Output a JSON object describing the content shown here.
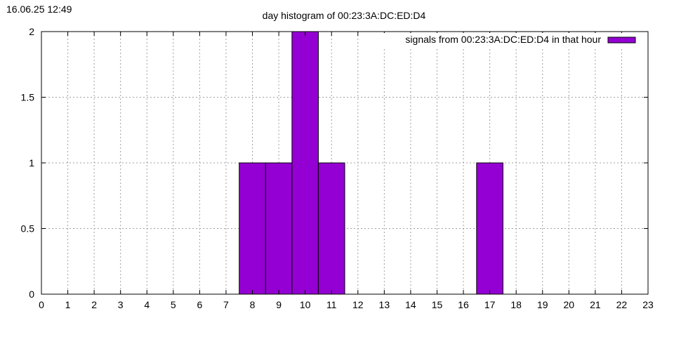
{
  "timestamp": "16.06.25 12:49",
  "chart_data": {
    "type": "bar",
    "title": "day histogram of 00:23:3A:DC:ED:D4",
    "xlabel": "",
    "ylabel": "",
    "xlim": [
      0,
      23
    ],
    "ylim": [
      0,
      2
    ],
    "x_ticks": [
      0,
      1,
      2,
      3,
      4,
      5,
      6,
      7,
      8,
      9,
      10,
      11,
      12,
      13,
      14,
      15,
      16,
      17,
      18,
      19,
      20,
      21,
      22,
      23
    ],
    "y_ticks": [
      "0",
      "0.5",
      "1",
      "1.5",
      "2"
    ],
    "grid": true,
    "legend_position": "top-right",
    "series": [
      {
        "name": "signals from 00:23:3A:DC:ED:D4 in that hour",
        "color": "#9400d3",
        "x": [
          8,
          9,
          10,
          11,
          17
        ],
        "values": [
          1,
          1,
          2,
          1,
          1
        ]
      }
    ]
  }
}
